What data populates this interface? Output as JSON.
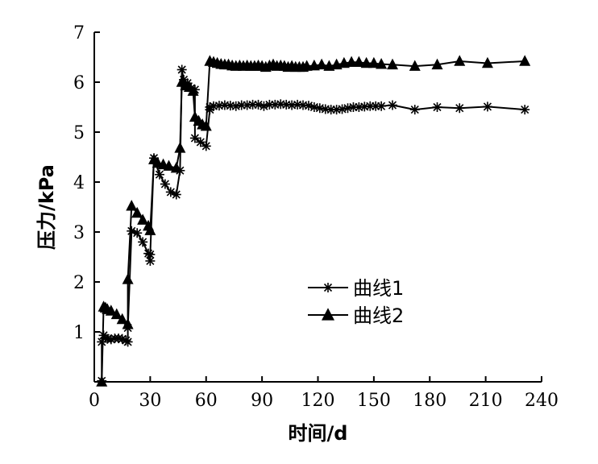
{
  "chart_data": {
    "type": "line",
    "xlabel": "时间/d",
    "ylabel": "压力/kPa",
    "xlim": [
      0,
      240
    ],
    "ylim": [
      0,
      7
    ],
    "xticks": [
      0,
      30,
      60,
      90,
      120,
      150,
      180,
      210,
      240
    ],
    "yticks": [
      1,
      2,
      3,
      4,
      5,
      6,
      7
    ],
    "grid": false,
    "legend_position": "center-right",
    "series": [
      {
        "name": "曲线1",
        "marker": "asterisk",
        "color": "#000000",
        "x": [
          4,
          4,
          5,
          6,
          7,
          9,
          11,
          13,
          15,
          17,
          18,
          18,
          20,
          23,
          26,
          29,
          30,
          30,
          32,
          35,
          38,
          41,
          44,
          46,
          47,
          48,
          50,
          52,
          54,
          54,
          57,
          60,
          62,
          62,
          64,
          67,
          70,
          73,
          76,
          79,
          82,
          85,
          88,
          91,
          94,
          97,
          100,
          103,
          106,
          109,
          112,
          115,
          118,
          121,
          124,
          127,
          130,
          133,
          136,
          139,
          142,
          145,
          148,
          151,
          154,
          160,
          172,
          184,
          196,
          211,
          231
        ],
        "y": [
          0.02,
          0.8,
          0.93,
          0.88,
          0.86,
          0.85,
          0.87,
          0.87,
          0.86,
          0.83,
          0.8,
          1.08,
          3.02,
          2.98,
          2.8,
          2.57,
          2.42,
          2.55,
          4.48,
          4.15,
          3.96,
          3.8,
          3.75,
          4.23,
          6.25,
          6.05,
          5.98,
          5.88,
          5.85,
          4.88,
          4.8,
          4.72,
          5.45,
          5.5,
          5.52,
          5.53,
          5.54,
          5.53,
          5.52,
          5.54,
          5.54,
          5.55,
          5.55,
          5.52,
          5.55,
          5.55,
          5.56,
          5.55,
          5.54,
          5.55,
          5.54,
          5.53,
          5.5,
          5.48,
          5.46,
          5.45,
          5.45,
          5.46,
          5.48,
          5.5,
          5.5,
          5.51,
          5.52,
          5.52,
          5.52,
          5.54,
          5.45,
          5.5,
          5.48,
          5.51,
          5.45
        ]
      },
      {
        "name": "曲线2",
        "marker": "triangle",
        "color": "#000000",
        "x": [
          4,
          5,
          6,
          7,
          9,
          12,
          15,
          18,
          18,
          20,
          23,
          26,
          29,
          30,
          32,
          34,
          37,
          40,
          44,
          46,
          47,
          49,
          51,
          53,
          54,
          56,
          58,
          60,
          62,
          64,
          66,
          68,
          70,
          72,
          74,
          76,
          78,
          80,
          82,
          84,
          86,
          88,
          90,
          92,
          94,
          96,
          98,
          100,
          102,
          104,
          106,
          108,
          110,
          112,
          114,
          118,
          122,
          126,
          130,
          134,
          138,
          142,
          146,
          150,
          154,
          160,
          172,
          184,
          196,
          211,
          231
        ],
        "y": [
          0.0,
          1.5,
          1.48,
          1.45,
          1.42,
          1.35,
          1.25,
          1.15,
          2.05,
          3.52,
          3.38,
          3.24,
          3.12,
          3.03,
          4.45,
          4.38,
          4.35,
          4.32,
          4.28,
          4.68,
          6.0,
          5.93,
          5.9,
          5.82,
          5.3,
          5.22,
          5.15,
          5.12,
          6.42,
          6.4,
          6.38,
          6.36,
          6.35,
          6.35,
          6.33,
          6.32,
          6.33,
          6.32,
          6.33,
          6.32,
          6.32,
          6.33,
          6.32,
          6.3,
          6.33,
          6.35,
          6.32,
          6.33,
          6.32,
          6.3,
          6.32,
          6.3,
          6.3,
          6.3,
          6.32,
          6.33,
          6.35,
          6.32,
          6.35,
          6.38,
          6.4,
          6.4,
          6.38,
          6.38,
          6.36,
          6.35,
          6.32,
          6.35,
          6.42,
          6.38,
          6.42
        ]
      }
    ]
  }
}
